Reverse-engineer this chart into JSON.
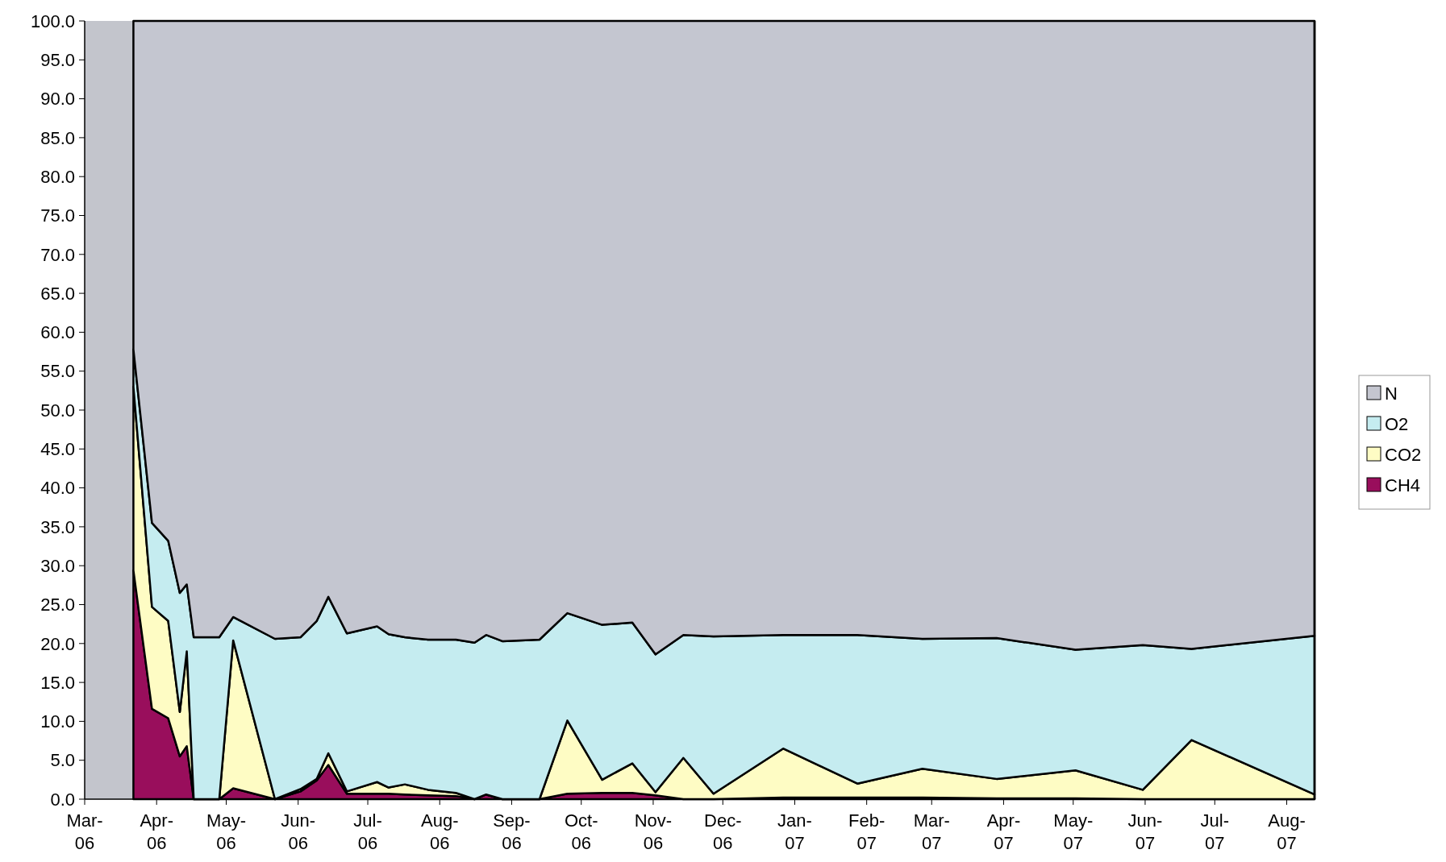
{
  "chart_data": {
    "type": "area",
    "stacked": true,
    "legend": "right",
    "grid": false,
    "x": [
      "2006-03-22",
      "2006-03-30",
      "2006-04-06",
      "2006-04-11",
      "2006-04-14",
      "2006-04-17",
      "2006-04-28",
      "2006-05-04",
      "2006-05-22",
      "2006-06-02",
      "2006-06-09",
      "2006-06-14",
      "2006-06-22",
      "2006-07-05",
      "2006-07-10",
      "2006-07-17",
      "2006-07-27",
      "2006-08-08",
      "2006-08-16",
      "2006-08-21",
      "2006-08-28",
      "2006-09-13",
      "2006-09-25",
      "2006-10-10",
      "2006-10-23",
      "2006-11-02",
      "2006-11-14",
      "2006-11-27",
      "2006-12-27",
      "2007-01-28",
      "2007-02-25",
      "2007-03-29",
      "2007-05-02",
      "2007-05-31",
      "2007-06-21",
      "2007-08-13"
    ],
    "series": [
      {
        "name": "CH4",
        "color": "#990e5c",
        "values": [
          29.4,
          11.6,
          10.4,
          5.5,
          6.8,
          0,
          0,
          1.4,
          0,
          1.0,
          2.4,
          4.4,
          0.7,
          0.7,
          0.7,
          0.6,
          0.5,
          0.4,
          0,
          0.6,
          0,
          0,
          0.7,
          0.8,
          0.8,
          0.5,
          0,
          0,
          0.2,
          0.2,
          0.2,
          0.1,
          0.1,
          0,
          0,
          0
        ]
      },
      {
        "name": "CO2",
        "color": "#fefcc4",
        "values": [
          23.6,
          13.1,
          12.5,
          5.7,
          12.2,
          0,
          0,
          19.0,
          0,
          0.3,
          0.2,
          1.5,
          0.3,
          1.5,
          0.8,
          1.3,
          0.7,
          0.4,
          0,
          0,
          0,
          0,
          9.4,
          1.7,
          3.8,
          0.4,
          5.3,
          0.7,
          6.3,
          1.8,
          3.7,
          2.5,
          3.6,
          1.2,
          7.6,
          0.6
        ]
      },
      {
        "name": "O2",
        "color": "#c5ecf0",
        "values": [
          4.8,
          10.8,
          10.3,
          15.3,
          8.6,
          20.8,
          20.8,
          3.0,
          20.6,
          19.5,
          20.3,
          20.1,
          20.3,
          20.0,
          19.7,
          18.9,
          19.3,
          19.7,
          20.1,
          20.5,
          20.3,
          20.5,
          13.8,
          19.9,
          18.1,
          17.7,
          15.8,
          20.2,
          14.6,
          19.1,
          16.7,
          18.1,
          15.5,
          18.6,
          11.7,
          20.4
        ]
      },
      {
        "name": "N",
        "color": "#c4c6d0",
        "values": [
          42.2,
          64.5,
          66.8,
          73.5,
          72.4,
          79.2,
          79.2,
          76.6,
          79.4,
          79.2,
          77.1,
          74.0,
          78.7,
          77.8,
          78.8,
          79.2,
          79.5,
          79.5,
          79.9,
          78.9,
          79.7,
          79.5,
          76.1,
          77.6,
          77.3,
          81.4,
          78.9,
          79.1,
          78.9,
          78.9,
          79.4,
          79.3,
          80.8,
          80.2,
          80.7,
          79.0
        ]
      }
    ],
    "xlim": [
      "2006-03-01",
      "2007-08-13"
    ],
    "xticks": [
      {
        "value": "2006-03",
        "label": "Mar-06"
      },
      {
        "value": "2006-04",
        "label": "Apr-06"
      },
      {
        "value": "2006-05",
        "label": "May-06"
      },
      {
        "value": "2006-06",
        "label": "Jun-06"
      },
      {
        "value": "2006-07",
        "label": "Jul-06"
      },
      {
        "value": "2006-08",
        "label": "Aug-06"
      },
      {
        "value": "2006-09",
        "label": "Sep-06"
      },
      {
        "value": "2006-10",
        "label": "Oct-06"
      },
      {
        "value": "2006-11",
        "label": "Nov-06"
      },
      {
        "value": "2006-12",
        "label": "Dec-06"
      },
      {
        "value": "2007-01",
        "label": "Jan-07"
      },
      {
        "value": "2007-02",
        "label": "Feb-07"
      },
      {
        "value": "2007-03",
        "label": "Mar-07"
      },
      {
        "value": "2007-04",
        "label": "Apr-07"
      },
      {
        "value": "2007-05",
        "label": "May-07"
      },
      {
        "value": "2007-06",
        "label": "Jun-07"
      },
      {
        "value": "2007-07",
        "label": "Jul-07"
      },
      {
        "value": "2007-08",
        "label": "Aug-07"
      }
    ],
    "bands": [
      {
        "axis": "x",
        "from": "2006-03-01",
        "to": "2006-03-22",
        "color": "#c3c5cc"
      }
    ],
    "ylim": [
      0,
      100
    ],
    "yticks": [
      {
        "value": 0,
        "label": "0.0"
      },
      {
        "value": 5,
        "label": "5.0"
      },
      {
        "value": 10,
        "label": "10.0"
      },
      {
        "value": 15,
        "label": "15.0"
      },
      {
        "value": 20,
        "label": "20.0"
      },
      {
        "value": 25,
        "label": "25.0"
      },
      {
        "value": 30,
        "label": "30.0"
      },
      {
        "value": 35,
        "label": "35.0"
      },
      {
        "value": 40,
        "label": "40.0"
      },
      {
        "value": 45,
        "label": "45.0"
      },
      {
        "value": 50,
        "label": "50.0"
      },
      {
        "value": 55,
        "label": "55.0"
      },
      {
        "value": 60,
        "label": "60.0"
      },
      {
        "value": 65,
        "label": "65.0"
      },
      {
        "value": 70,
        "label": "70.0"
      },
      {
        "value": 75,
        "label": "75.0"
      },
      {
        "value": 80,
        "label": "80.0"
      },
      {
        "value": 85,
        "label": "85.0"
      },
      {
        "value": 90,
        "label": "90.0"
      },
      {
        "value": 95,
        "label": "95.0"
      },
      {
        "value": 100,
        "label": "100.0"
      }
    ]
  }
}
